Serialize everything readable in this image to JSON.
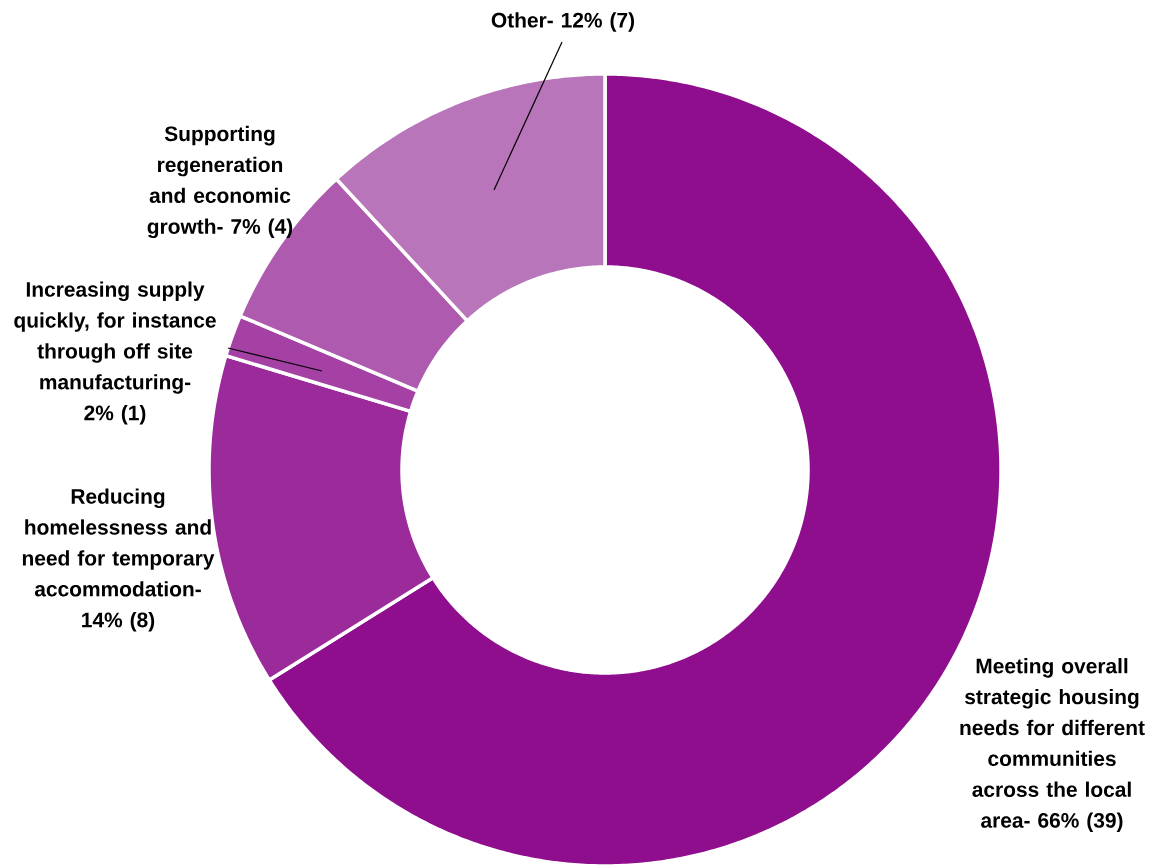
{
  "chart_data": {
    "type": "donut",
    "categories": [
      "Meeting overall strategic housing needs for different communities across the local area- 66% (39)",
      "Reducing homelessness and need for temporary accommodation- 14%  (8)",
      "Increasing supply quickly, for instance through off site manufacturing- 2% (1)",
      "Supporting regeneration and economic growth- 7% (4)",
      "Other- 12% (7)"
    ],
    "values": [
      39,
      8,
      1,
      4,
      7
    ],
    "colors": [
      "#8e0e8e",
      "#9b2a9b",
      "#a540a5",
      "#ae5aae",
      "#b975b9"
    ]
  }
}
